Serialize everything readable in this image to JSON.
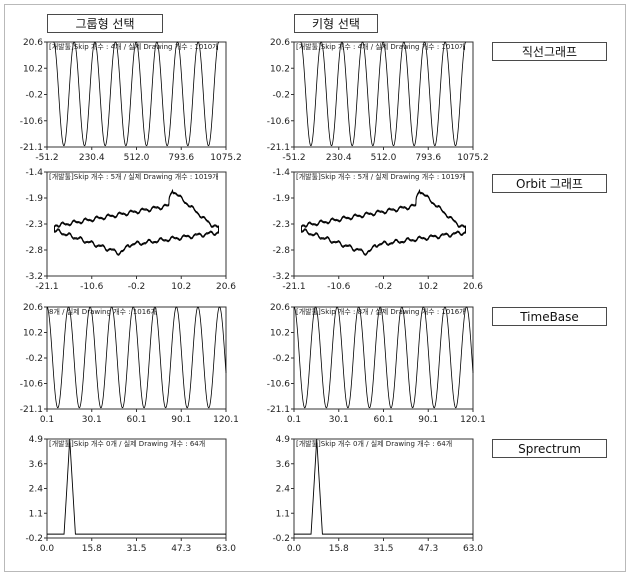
{
  "header": {
    "group_select_label": "그룹형 선택",
    "key_select_label": "키형 선택"
  },
  "side_buttons": [
    {
      "label": "직선그래프"
    },
    {
      "label": "Orbit 그래프"
    },
    {
      "label": "TimeBase"
    },
    {
      "label": "Sprectrum"
    }
  ],
  "chart_data": [
    {
      "type": "line",
      "panel": "group-linear",
      "annotation": "[개발툴]Skip 개수 : 4개 / 실제 Drawing 개수 : 1010개",
      "y_ticks": [
        "20.6",
        "10.2",
        "-0.2",
        "-10.6",
        "-21.1"
      ],
      "x_ticks": [
        "-51.2",
        "230.4",
        "512.0",
        "793.6",
        "1075.2"
      ],
      "xlim": [
        -51.2,
        1075.2
      ],
      "ylim": [
        -21.1,
        20.6
      ],
      "series": [
        {
          "kind": "sine",
          "amplitude": 20.6,
          "cycles": 8,
          "x_start": -10,
          "x_end": 1030
        }
      ]
    },
    {
      "type": "line",
      "panel": "key-linear",
      "annotation": "[개발툴]Skip 개수 : 4개 / 실제 Drawing 개수 : 1010개",
      "y_ticks": [
        "20.6",
        "10.2",
        "-0.2",
        "-10.6",
        "-21.1"
      ],
      "x_ticks": [
        "-51.2",
        "230.4",
        "512.0",
        "793.6",
        "1075.2"
      ],
      "xlim": [
        -51.2,
        1075.2
      ],
      "ylim": [
        -21.1,
        20.6
      ],
      "series": [
        {
          "kind": "sine",
          "amplitude": 20.6,
          "cycles": 8,
          "x_start": -10,
          "x_end": 1030
        }
      ]
    },
    {
      "type": "line",
      "panel": "group-orbit",
      "annotation": "[개발툴]Skip 개수 : 5개 / 실제 Drawing 개수 : 1019개",
      "y_ticks": [
        "-1.4",
        "-1.9",
        "-2.3",
        "-2.8",
        "-3.2"
      ],
      "x_ticks": [
        "-21.1",
        "-10.6",
        "-0.2",
        "10.2",
        "20.6"
      ],
      "xlim": [
        -21.1,
        20.6
      ],
      "ylim": [
        -3.2,
        -1.4
      ],
      "series": [
        {
          "kind": "orbit"
        }
      ]
    },
    {
      "type": "line",
      "panel": "key-orbit",
      "annotation": "[개발툴]Skip 개수 : 5개 / 실제 Drawing 개수 : 1019개",
      "y_ticks": [
        "-1.4",
        "-1.9",
        "-2.3",
        "-2.8",
        "-3.2"
      ],
      "x_ticks": [
        "-21.1",
        "-10.6",
        "-0.2",
        "10.2",
        "20.6"
      ],
      "xlim": [
        -21.1,
        20.6
      ],
      "ylim": [
        -3.2,
        -1.4
      ],
      "series": [
        {
          "kind": "orbit"
        }
      ]
    },
    {
      "type": "line",
      "panel": "group-timebase",
      "annotation": "8개 / 실제 Drawing 개수 : 1016개",
      "y_ticks": [
        "20.6",
        "10.2",
        "-0.2",
        "-10.6",
        "-21.1"
      ],
      "x_ticks": [
        "0.1",
        "30.1",
        "60.1",
        "90.1",
        "120.1"
      ],
      "xlim": [
        0.1,
        130.1
      ],
      "ylim": [
        -21.1,
        20.6
      ],
      "series": [
        {
          "kind": "sine",
          "amplitude": 20.6,
          "cycles": 8.3,
          "x_start": 0.1,
          "x_end": 130.1
        }
      ]
    },
    {
      "type": "line",
      "panel": "key-timebase",
      "annotation": "[개발툴]Skip 개수 : 8개 / 실제 Drawing 개수 : 1016개",
      "y_ticks": [
        "20.6",
        "10.2",
        "-0.2",
        "-10.6",
        "-21.1"
      ],
      "x_ticks": [
        "0.1",
        "30.1",
        "60.1",
        "90.1",
        "120.1"
      ],
      "xlim": [
        0.1,
        130.1
      ],
      "ylim": [
        -21.1,
        20.6
      ],
      "series": [
        {
          "kind": "sine",
          "amplitude": 20.6,
          "cycles": 8.3,
          "x_start": 0.1,
          "x_end": 130.1
        }
      ]
    },
    {
      "type": "line",
      "panel": "group-spectrum",
      "annotation": "[개발툴]Skip 개수 0개 / 실제 Drawing 개수 : 64개",
      "y_ticks": [
        "4.9",
        "3.6",
        "2.4",
        "1.1",
        "-0.2"
      ],
      "x_ticks": [
        "0.0",
        "15.8",
        "31.5",
        "47.3",
        "63.0"
      ],
      "xlim": [
        0,
        63
      ],
      "ylim": [
        -0.2,
        4.9
      ],
      "series": [
        {
          "kind": "spike",
          "x": [
            0,
            6,
            7,
            8,
            10,
            63
          ],
          "y": [
            0,
            0,
            2.4,
            4.9,
            0,
            0
          ]
        }
      ]
    },
    {
      "type": "line",
      "panel": "key-spectrum",
      "annotation": "[개발툴]Skip 개수 0개 / 실제 Drawing 개수 : 64개",
      "y_ticks": [
        "4.9",
        "3.6",
        "2.4",
        "1.1",
        "-0.2"
      ],
      "x_ticks": [
        "0.0",
        "15.8",
        "31.5",
        "47.3",
        "63.0"
      ],
      "xlim": [
        0,
        63
      ],
      "ylim": [
        -0.2,
        4.9
      ],
      "series": [
        {
          "kind": "spike",
          "x": [
            0,
            6,
            7,
            8,
            10,
            63
          ],
          "y": [
            0,
            0,
            2.4,
            4.9,
            0,
            0
          ]
        }
      ]
    }
  ]
}
